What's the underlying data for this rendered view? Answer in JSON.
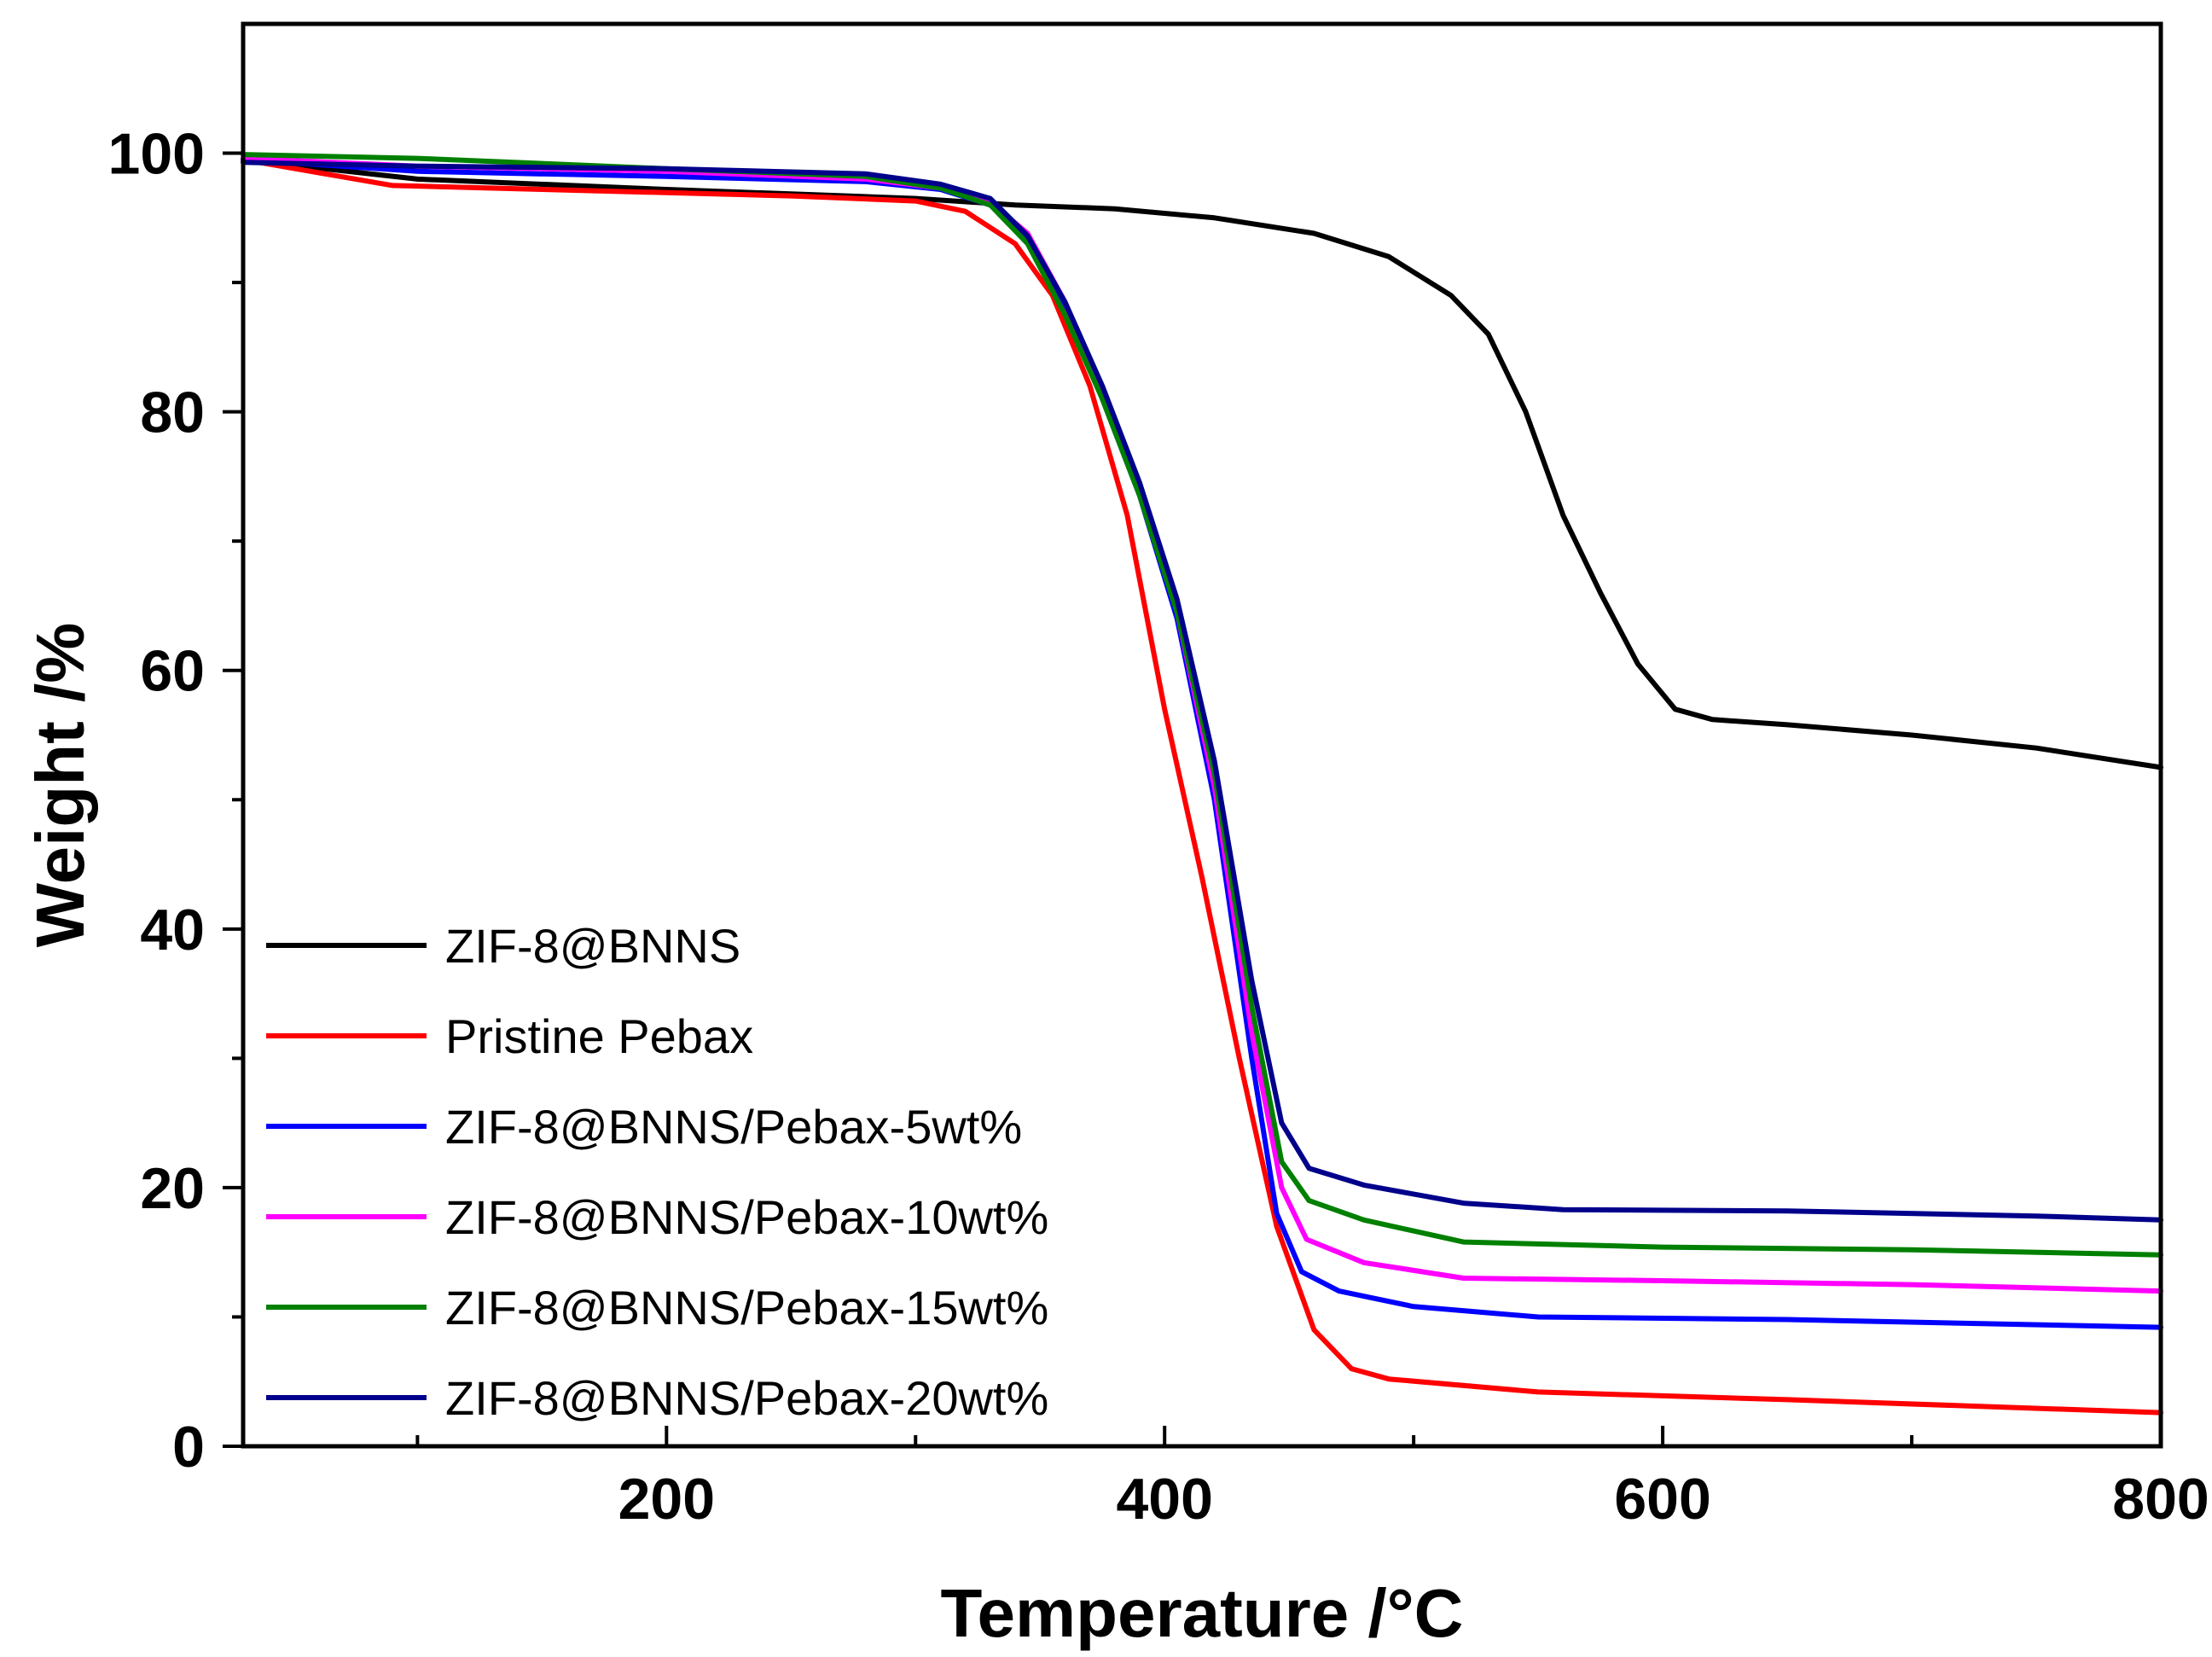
{
  "chart_data": {
    "type": "line",
    "title": "",
    "xlabel": "Temperature /°C",
    "ylabel": "Weight /%",
    "xlim": [
      30,
      800
    ],
    "ylim": [
      0,
      110
    ],
    "x_ticks": [
      200,
      400,
      600,
      800
    ],
    "x_minor_ticks": [
      100,
      300,
      500,
      700
    ],
    "y_ticks": [
      0,
      20,
      40,
      60,
      80,
      100
    ],
    "y_minor_ticks": [
      10,
      30,
      50,
      70,
      90
    ],
    "legend_position": "bottom-left",
    "series": [
      {
        "name": "ZIF-8@BNNS",
        "color": "#000000",
        "points": [
          [
            30,
            99.5
          ],
          [
            100,
            98.0
          ],
          [
            200,
            97.2
          ],
          [
            300,
            96.5
          ],
          [
            340,
            96.0
          ],
          [
            380,
            95.7
          ],
          [
            420,
            95.0
          ],
          [
            460,
            93.8
          ],
          [
            490,
            92.0
          ],
          [
            515,
            89.0
          ],
          [
            530,
            86.0
          ],
          [
            545,
            80.0
          ],
          [
            560,
            72.0
          ],
          [
            575,
            66.0
          ],
          [
            590,
            60.5
          ],
          [
            605,
            57.0
          ],
          [
            620,
            56.2
          ],
          [
            650,
            55.8
          ],
          [
            700,
            55.0
          ],
          [
            750,
            54.0
          ],
          [
            800,
            52.5
          ]
        ]
      },
      {
        "name": "Pristine Pebax",
        "color": "#ff0000",
        "points": [
          [
            30,
            99.5
          ],
          [
            60,
            98.5
          ],
          [
            90,
            97.5
          ],
          [
            150,
            97.2
          ],
          [
            250,
            96.7
          ],
          [
            300,
            96.3
          ],
          [
            320,
            95.5
          ],
          [
            340,
            93.0
          ],
          [
            355,
            89.0
          ],
          [
            370,
            82.0
          ],
          [
            385,
            72.0
          ],
          [
            400,
            57.0
          ],
          [
            415,
            44.0
          ],
          [
            430,
            30.0
          ],
          [
            445,
            17.0
          ],
          [
            460,
            9.0
          ],
          [
            475,
            6.0
          ],
          [
            490,
            5.2
          ],
          [
            550,
            4.2
          ],
          [
            650,
            3.6
          ],
          [
            800,
            2.6
          ]
        ]
      },
      {
        "name": "ZIF-8@BNNS/Pebax-5wt%",
        "color": "#0000ff",
        "points": [
          [
            30,
            99.5
          ],
          [
            100,
            98.6
          ],
          [
            200,
            98.2
          ],
          [
            280,
            97.8
          ],
          [
            310,
            97.2
          ],
          [
            330,
            96.0
          ],
          [
            345,
            93.5
          ],
          [
            360,
            88.0
          ],
          [
            375,
            81.0
          ],
          [
            390,
            73.5
          ],
          [
            405,
            64.0
          ],
          [
            420,
            50.0
          ],
          [
            435,
            30.0
          ],
          [
            445,
            18.0
          ],
          [
            455,
            13.5
          ],
          [
            470,
            12.0
          ],
          [
            500,
            10.8
          ],
          [
            550,
            10.0
          ],
          [
            650,
            9.8
          ],
          [
            800,
            9.2
          ]
        ]
      },
      {
        "name": "ZIF-8@BNNS/Pebax-10wt%",
        "color": "#ff00ff",
        "points": [
          [
            30,
            99.6
          ],
          [
            100,
            99.0
          ],
          [
            200,
            98.6
          ],
          [
            280,
            98.0
          ],
          [
            310,
            97.3
          ],
          [
            330,
            96.2
          ],
          [
            345,
            93.8
          ],
          [
            360,
            88.5
          ],
          [
            375,
            81.5
          ],
          [
            390,
            74.0
          ],
          [
            405,
            64.5
          ],
          [
            420,
            51.0
          ],
          [
            435,
            32.0
          ],
          [
            447,
            20.0
          ],
          [
            457,
            16.0
          ],
          [
            480,
            14.2
          ],
          [
            520,
            13.0
          ],
          [
            600,
            12.8
          ],
          [
            700,
            12.5
          ],
          [
            800,
            12.0
          ]
        ]
      },
      {
        "name": "ZIF-8@BNNS/Pebax-15wt%",
        "color": "#008000",
        "points": [
          [
            30,
            99.9
          ],
          [
            100,
            99.6
          ],
          [
            200,
            98.8
          ],
          [
            280,
            98.2
          ],
          [
            310,
            97.3
          ],
          [
            330,
            96.0
          ],
          [
            345,
            93.0
          ],
          [
            360,
            87.5
          ],
          [
            375,
            81.0
          ],
          [
            390,
            73.5
          ],
          [
            405,
            64.5
          ],
          [
            420,
            52.0
          ],
          [
            435,
            34.0
          ],
          [
            447,
            22.0
          ],
          [
            458,
            19.0
          ],
          [
            480,
            17.5
          ],
          [
            520,
            15.8
          ],
          [
            600,
            15.4
          ],
          [
            700,
            15.2
          ],
          [
            800,
            14.8
          ]
        ]
      },
      {
        "name": "ZIF-8@BNNS/Pebax-20wt%",
        "color": "#00008b",
        "points": [
          [
            30,
            99.3
          ],
          [
            100,
            99.0
          ],
          [
            200,
            98.8
          ],
          [
            280,
            98.4
          ],
          [
            310,
            97.6
          ],
          [
            330,
            96.5
          ],
          [
            345,
            93.6
          ],
          [
            360,
            88.5
          ],
          [
            375,
            82.0
          ],
          [
            390,
            74.5
          ],
          [
            405,
            65.5
          ],
          [
            420,
            53.0
          ],
          [
            435,
            36.0
          ],
          [
            447,
            25.0
          ],
          [
            458,
            21.5
          ],
          [
            480,
            20.2
          ],
          [
            520,
            18.8
          ],
          [
            560,
            18.3
          ],
          [
            650,
            18.2
          ],
          [
            750,
            17.8
          ],
          [
            800,
            17.5
          ]
        ]
      }
    ]
  }
}
